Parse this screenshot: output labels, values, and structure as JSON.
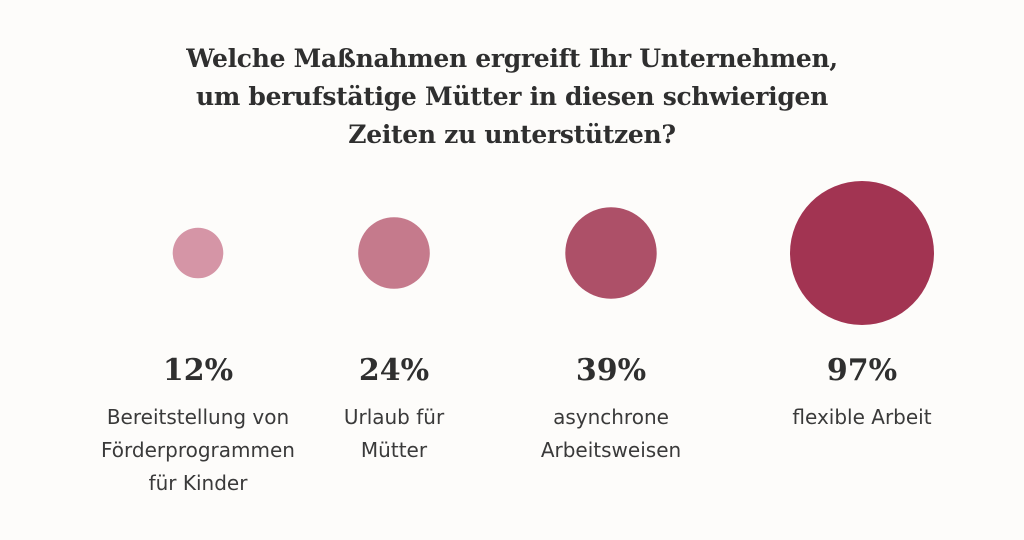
{
  "chart_data": {
    "type": "bubble",
    "title_lines": [
      "Welche Maßnahmen ergreift Ihr Unternehmen,",
      "um berufstätige Mütter in diesen schwierigen",
      "Zeiten zu unterstützen?"
    ],
    "series": [
      {
        "value": 12,
        "value_label": "12%",
        "label_lines": [
          "Bereitstellung von",
          "Förderprogrammen",
          "für Kinder"
        ],
        "color": "#d595a6"
      },
      {
        "value": 24,
        "value_label": "24%",
        "label_lines": [
          "Urlaub für",
          "Mütter"
        ],
        "color": "#c57a8c"
      },
      {
        "value": 39,
        "value_label": "39%",
        "label_lines": [
          "asynchrone",
          "Arbeitsweisen"
        ],
        "color": "#ad5068"
      },
      {
        "value": 97,
        "value_label": "97%",
        "label_lines": [
          "flexible Arbeit"
        ],
        "color": "#a23452"
      }
    ]
  }
}
